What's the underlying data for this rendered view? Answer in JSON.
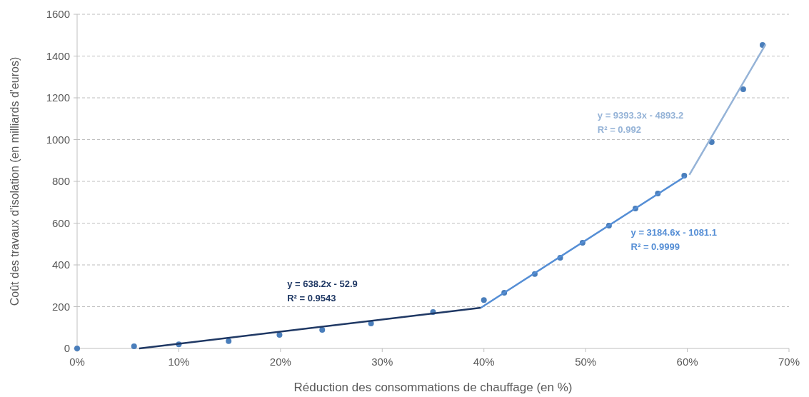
{
  "chart_data": {
    "type": "scatter",
    "xlabel": "Réduction des consommations de chauffage (en %)",
    "ylabel": "Coût des travaux d'isolation (en milliards d'euros)",
    "xlim": [
      0,
      70
    ],
    "ylim": [
      0,
      1600
    ],
    "xticks": [
      {
        "value": 0,
        "label": "0%"
      },
      {
        "value": 10,
        "label": "10%"
      },
      {
        "value": 20,
        "label": "20%"
      },
      {
        "value": 30,
        "label": "30%"
      },
      {
        "value": 40,
        "label": "40%"
      },
      {
        "value": 50,
        "label": "50%"
      },
      {
        "value": 60,
        "label": "60%"
      },
      {
        "value": 70,
        "label": "70%"
      }
    ],
    "yticks": [
      0,
      200,
      400,
      600,
      800,
      1000,
      1200,
      1400,
      1600
    ],
    "grid": "y",
    "series": [
      {
        "marker": "circle",
        "color": "#4a7ebb",
        "x": [
          0,
          5.6,
          10,
          14.9,
          19.9,
          24.1,
          28.9,
          35,
          40,
          42,
          45,
          47.5,
          49.7,
          52.3,
          54.9,
          57.1,
          59.7,
          62.4,
          65.5,
          67.4
        ],
        "values": [
          0,
          10,
          20,
          35,
          65,
          89,
          120,
          174,
          232,
          267,
          356,
          434,
          506,
          588,
          670,
          742,
          827,
          988,
          1241,
          1453
        ]
      },
      {
        "type": "line",
        "color": "#1f3864",
        "x": [
          6.1,
          39.7
        ],
        "values": [
          0,
          195
        ]
      },
      {
        "type": "line",
        "color": "#558ed5",
        "x": [
          39.7,
          59.8
        ],
        "values": [
          195,
          824
        ]
      },
      {
        "type": "line",
        "color": "#95b3d7",
        "x": [
          60.2,
          67.7
        ],
        "values": [
          831,
          1456
        ]
      }
    ],
    "annotations": [
      "y = 638.2x  - 52.9\nR² = 0.9543",
      "y = 3184.6x  - 1081.1\nR² = 0.9999",
      "y = 9393.3x  - 4893.2\nR² = 0.992"
    ]
  }
}
